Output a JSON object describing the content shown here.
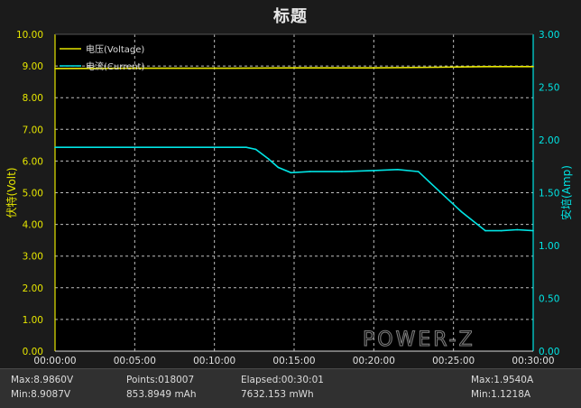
{
  "title": "标题",
  "chart_data": {
    "type": "line",
    "title": "标题",
    "xlabel": "",
    "x_ticks": [
      "00:00:00",
      "00:05:00",
      "00:10:00",
      "00:15:00",
      "00:20:00",
      "00:25:00",
      "00:30:00"
    ],
    "xlim": [
      0,
      30
    ],
    "ylabel_left": "伏特(Volt)",
    "ylim_left": [
      0,
      10
    ],
    "y_ticks_left": [
      "0.00",
      "1.00",
      "2.00",
      "3.00",
      "4.00",
      "5.00",
      "6.00",
      "7.00",
      "8.00",
      "9.00",
      "10.00"
    ],
    "ylabel_right": "安培(Amp)",
    "ylim_right": [
      0,
      3
    ],
    "y_ticks_right": [
      "0.00",
      "0.50",
      "1.00",
      "1.50",
      "2.00",
      "2.50",
      "3.00"
    ],
    "grid": true,
    "legend_position": "top-left",
    "series": [
      {
        "name": "电压(Voltage)",
        "axis": "left",
        "color": "#e6e600",
        "x": [
          0,
          5,
          10,
          15,
          20,
          24,
          27,
          30
        ],
        "values": [
          8.92,
          8.93,
          8.93,
          8.94,
          8.94,
          8.96,
          8.98,
          8.98
        ]
      },
      {
        "name": "电流(Current)",
        "axis": "right",
        "color": "#00e5e5",
        "x": [
          0,
          12,
          12.6,
          13.4,
          14.0,
          14.8,
          16.0,
          18.0,
          20.0,
          21.5,
          22.8,
          23.5,
          24.5,
          25.5,
          26.5,
          27.0,
          28.0,
          29.0,
          30.0
        ],
        "values": [
          1.93,
          1.93,
          1.91,
          1.82,
          1.74,
          1.69,
          1.7,
          1.7,
          1.71,
          1.72,
          1.7,
          1.6,
          1.46,
          1.32,
          1.2,
          1.14,
          1.14,
          1.15,
          1.14
        ]
      }
    ],
    "watermark": "POWER-Z"
  },
  "stats": {
    "max_voltage": "Max:8.9860V",
    "min_voltage": "Min:8.9087V",
    "points": "Points:018007",
    "capacity": "853.8949 mAh",
    "elapsed": "Elapsed:00:30:01",
    "energy": "7632.153 mWh",
    "max_current": "Max:1.9540A",
    "min_current": "Min:1.1218A"
  }
}
